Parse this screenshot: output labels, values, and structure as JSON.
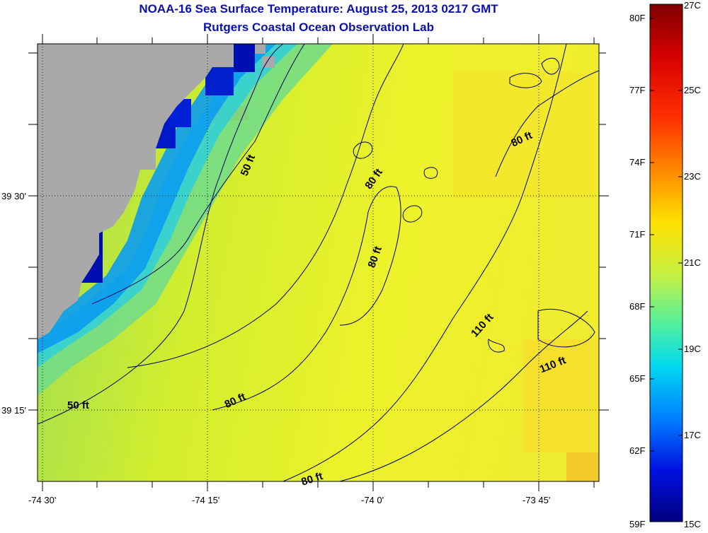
{
  "header": {
    "title": "NOAA-16 Sea Surface Temperature:  August 25, 2013 0217 GMT",
    "subtitle": "Rutgers Coastal Ocean Observation Lab"
  },
  "axes": {
    "x_ticks": [
      "-74 30'",
      "-74 15'",
      "-74 0'",
      "-73 45'"
    ],
    "y_ticks": [
      "39 30'",
      "39 15'"
    ]
  },
  "contours": {
    "labels": [
      "50 ft",
      "50 ft",
      "80 ft",
      "80 ft",
      "80 ft",
      "80 ft",
      "80 ft",
      "110 ft",
      "110 ft"
    ]
  },
  "colorbar": {
    "f_labels": [
      "80F",
      "77F",
      "74F",
      "71F",
      "68F",
      "65F",
      "62F",
      "59F"
    ],
    "c_labels": [
      "27C",
      "25C",
      "23C",
      "21C",
      "19C",
      "17C",
      "15C"
    ]
  },
  "colors": {
    "land": "#a9a9a9",
    "title": "#0a10b0",
    "contour": "#00005a"
  }
}
